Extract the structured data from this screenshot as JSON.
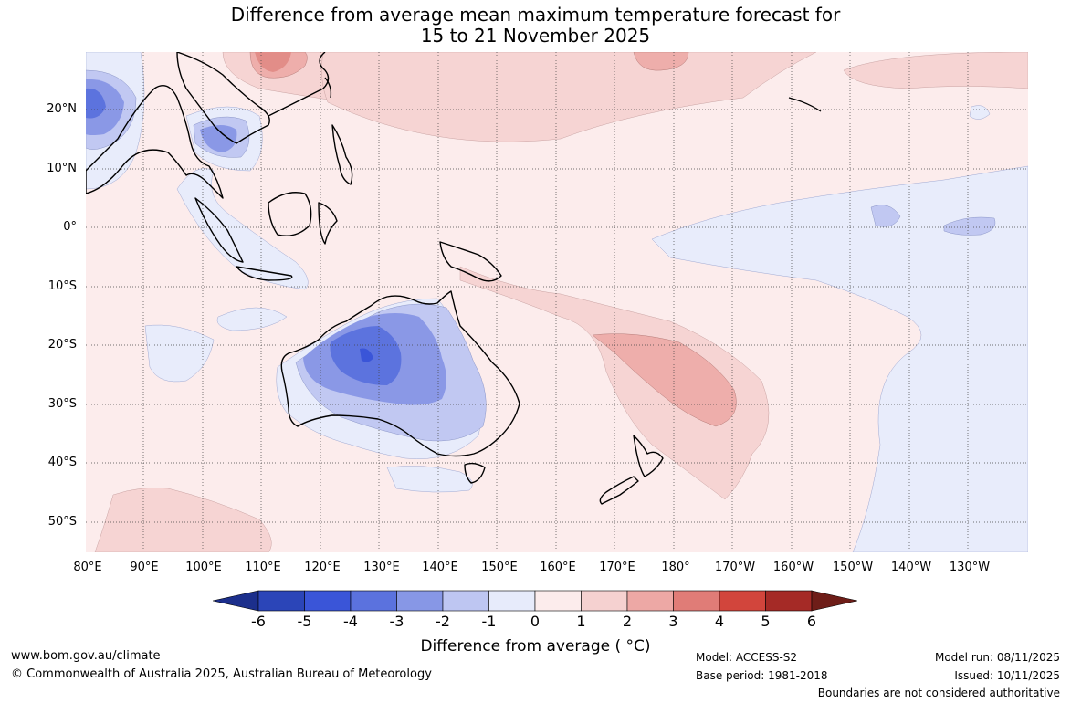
{
  "title_line1": "Difference from average mean maximum temperature forecast for",
  "title_line2": "15 to 21 November 2025",
  "lat_labels": [
    "20°N",
    "10°N",
    "0°",
    "10°S",
    "20°S",
    "30°S",
    "40°S",
    "50°S"
  ],
  "lon_labels": [
    "80°E",
    "90°E",
    "100°E",
    "110°E",
    "120°E",
    "130°E",
    "140°E",
    "150°E",
    "160°E",
    "170°E",
    "180°",
    "170°W",
    "160°W",
    "150°W",
    "140°W",
    "130°W"
  ],
  "colorbar": {
    "ticks": [
      "-6",
      "-5",
      "-4",
      "-3",
      "-2",
      "-1",
      "0",
      "1",
      "2",
      "3",
      "4",
      "5",
      "6"
    ],
    "colors": [
      "#1c2f8c",
      "#2b45b8",
      "#3a55d8",
      "#5b72de",
      "#8797e6",
      "#bec6f2",
      "#e7ebfb",
      "#fcecec",
      "#f5d1d0",
      "#eda8a5",
      "#e07c77",
      "#d2453c",
      "#a52a26",
      "#6e1d18"
    ],
    "label": "Difference from average ( °C)"
  },
  "footer": {
    "url": "www.bom.gov.au/climate",
    "copyright": "© Commonwealth of Australia 2025, Australian Bureau of Meteorology",
    "model": "Model: ACCESS-S2",
    "base_period": "Base period: 1981-2018",
    "model_run": "Model run: 08/11/2025",
    "issued": "Issued: 10/11/2025",
    "boundaries": "Boundaries are not considered authoritative"
  }
}
